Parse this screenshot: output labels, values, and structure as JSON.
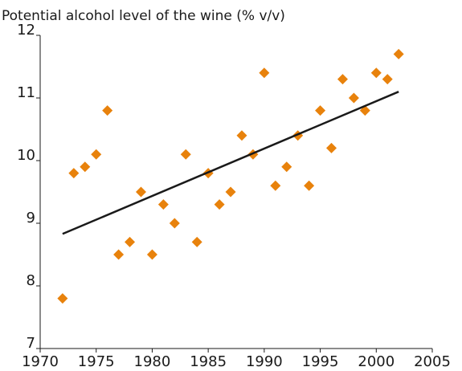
{
  "chart_data": {
    "type": "scatter",
    "title": "Potential alcohol level of the wine (% v/v)",
    "series": [
      {
        "color": "#e8820c",
        "x": [
          1972,
          1973,
          1974,
          1975,
          1976,
          1977,
          1978,
          1979,
          1980,
          1981,
          1982,
          1983,
          1984,
          1985,
          1986,
          1987,
          1988,
          1989,
          1990,
          1991,
          1992,
          1993,
          1994,
          1995,
          1996,
          1997,
          1998,
          1999,
          2000,
          2001,
          2002
        ],
        "values": [
          7.8,
          9.8,
          9.9,
          10.1,
          10.8,
          8.5,
          8.7,
          9.5,
          8.5,
          9.3,
          9.0,
          10.1,
          8.7,
          9.8,
          9.3,
          9.5,
          10.4,
          10.1,
          11.4,
          9.6,
          9.9,
          10.4,
          9.6,
          10.8,
          10.2,
          11.3,
          11.0,
          10.8,
          11.4,
          11.3,
          11.7
        ]
      }
    ],
    "trend": {
      "x": [
        1972,
        2002
      ],
      "values": [
        8.83,
        11.1
      ],
      "color": "#1a1a1a"
    },
    "xlim": [
      1970,
      2005
    ],
    "xticks": [
      1970,
      1975,
      1980,
      1985,
      1990,
      1995,
      2000,
      2005
    ],
    "ylim": [
      7,
      12
    ],
    "yticks": [
      7,
      8,
      9,
      10,
      11,
      12
    ],
    "grid": false
  }
}
